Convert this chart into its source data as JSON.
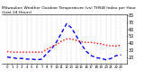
{
  "title": "Milwaukee Weather Outdoor Temperature (vs) THSW Index per Hour (Last 24 Hours)",
  "bg_color": "#ffffff",
  "grid_color": "#aaaaaa",
  "hours": [
    0,
    1,
    2,
    3,
    4,
    5,
    6,
    7,
    8,
    9,
    10,
    11,
    12,
    13,
    14,
    15,
    16,
    17,
    18,
    19,
    20,
    21,
    22,
    23
  ],
  "temp_color": "#ff0000",
  "thsw_color": "#0000ff",
  "temp_values": [
    28,
    27,
    27,
    27,
    27,
    27,
    27,
    27,
    31,
    35,
    38,
    43,
    46,
    46,
    44,
    42,
    41,
    41,
    40,
    39,
    37,
    36,
    36,
    37
  ],
  "thsw_values": [
    20,
    19,
    18,
    18,
    17,
    17,
    16,
    17,
    25,
    32,
    42,
    55,
    68,
    62,
    50,
    38,
    28,
    22,
    19,
    18,
    16,
    18,
    22,
    23
  ],
  "ylim": [
    10,
    82
  ],
  "yticks": [
    20,
    30,
    40,
    50,
    60,
    70,
    80
  ],
  "ylabel_fontsize": 3.5,
  "title_fontsize": 3.2,
  "line_width": 1.0
}
